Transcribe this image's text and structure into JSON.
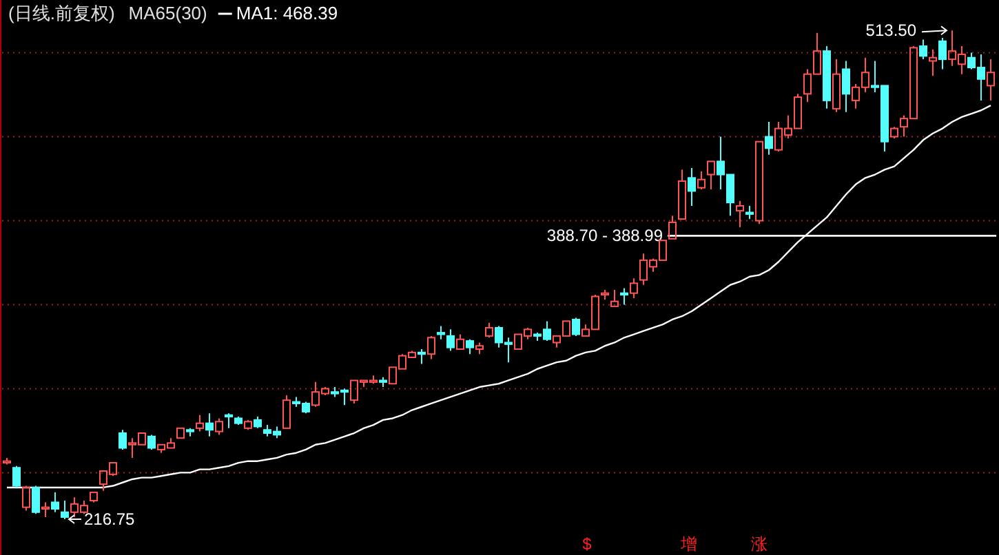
{
  "chart_data": {
    "type": "candlestick",
    "title": "(日线.前复权)",
    "categories": [
      null,
      null,
      null,
      null,
      null,
      null,
      null,
      null,
      null,
      null,
      null,
      null,
      null,
      null,
      null,
      null,
      null,
      null,
      null,
      null,
      null,
      null,
      null,
      null,
      null,
      null,
      null,
      null,
      null,
      null,
      null,
      null,
      null,
      null,
      null,
      null,
      null,
      null,
      null,
      null,
      null,
      null,
      null,
      null,
      null,
      null,
      null,
      null,
      null,
      null,
      null,
      null,
      null,
      null,
      null,
      null,
      null,
      null,
      null,
      null,
      null,
      null,
      null,
      null,
      null,
      null,
      null,
      null,
      null,
      null,
      null,
      null,
      null,
      null,
      null,
      null,
      null,
      null,
      null,
      null,
      null,
      null,
      null,
      null,
      null,
      null,
      null,
      null,
      null,
      null,
      null,
      null,
      null,
      null,
      null,
      null,
      null,
      null,
      null,
      null,
      null,
      null,
      null
    ],
    "ylim": [
      195,
      532
    ],
    "yticks": [
      {
        "value": 500,
        "label": null
      },
      {
        "value": 449,
        "label": null
      },
      {
        "value": 398,
        "label": null
      },
      {
        "value": 347,
        "label": null
      },
      {
        "value": 296,
        "label": null
      },
      {
        "value": 245,
        "label": null
      }
    ],
    "grid": "y",
    "series": [
      {
        "type": "candlestick",
        "ohlc": [
          [
            251,
            254,
            250,
            252
          ],
          [
            248,
            249,
            236,
            237
          ],
          [
            224,
            237,
            222,
            236
          ],
          [
            236,
            237,
            220,
            221
          ],
          [
            223,
            227,
            218,
            224
          ],
          [
            227,
            233,
            221,
            223
          ],
          [
            221,
            228,
            216.75,
            218
          ],
          [
            221,
            230,
            218,
            226
          ],
          [
            221,
            228,
            220,
            225
          ],
          [
            228,
            233,
            227,
            233
          ],
          [
            238,
            246,
            234,
            246
          ],
          [
            244,
            251,
            243,
            251
          ],
          [
            269,
            271,
            259,
            260
          ],
          [
            262,
            266,
            254,
            263
          ],
          [
            262,
            269,
            262,
            269
          ],
          [
            267,
            268,
            259,
            260
          ],
          [
            259,
            262,
            257,
            262
          ],
          [
            260,
            266,
            260,
            263
          ],
          [
            266,
            272,
            266,
            272
          ],
          [
            271,
            272,
            267,
            270
          ],
          [
            272,
            280,
            270,
            275
          ],
          [
            275,
            281,
            267,
            271
          ],
          [
            270,
            278,
            268,
            276
          ],
          [
            280,
            281,
            272,
            279
          ],
          [
            278,
            279,
            274,
            275
          ],
          [
            272,
            277,
            271,
            276
          ],
          [
            277,
            279,
            272,
            273
          ],
          [
            271,
            274,
            267,
            269
          ],
          [
            270,
            273,
            266,
            268
          ],
          [
            272,
            292,
            272,
            289
          ],
          [
            288,
            291,
            285,
            287
          ],
          [
            287,
            288,
            281,
            282
          ],
          [
            286,
            300,
            285,
            294
          ],
          [
            293,
            297,
            292,
            296
          ],
          [
            294,
            297,
            291,
            293
          ],
          [
            295,
            296,
            286,
            294
          ],
          [
            289,
            301,
            287,
            301
          ],
          [
            300,
            301,
            297,
            301
          ],
          [
            300,
            304,
            299,
            301
          ],
          [
            301,
            303,
            297,
            300
          ],
          [
            299,
            309,
            299,
            309
          ],
          [
            308,
            317,
            308,
            316
          ],
          [
            315,
            319,
            315,
            318
          ],
          [
            318,
            320,
            311,
            317
          ],
          [
            317,
            328,
            314,
            327
          ],
          [
            330,
            334,
            326,
            329
          ],
          [
            328,
            332,
            319,
            321
          ],
          [
            320,
            329,
            320,
            326
          ],
          [
            325,
            326,
            317,
            321
          ],
          [
            320,
            324,
            317,
            322
          ],
          [
            328,
            336,
            327,
            333
          ],
          [
            333,
            334,
            321,
            324
          ],
          [
            324,
            327,
            312,
            323
          ],
          [
            320,
            329,
            320,
            329
          ],
          [
            328,
            333,
            326,
            332
          ],
          [
            329,
            330,
            325,
            328
          ],
          [
            332,
            337,
            325,
            326
          ],
          [
            324,
            328,
            321,
            328
          ],
          [
            328,
            337,
            328,
            337
          ],
          [
            338,
            339,
            328,
            329
          ],
          [
            328,
            335,
            328,
            332
          ],
          [
            332,
            353,
            332,
            352
          ],
          [
            353,
            356,
            350,
            354
          ],
          [
            346,
            356,
            346,
            349
          ],
          [
            354,
            357,
            347,
            353
          ],
          [
            354,
            363,
            351,
            360
          ],
          [
            362,
            378,
            359,
            374
          ],
          [
            370,
            375,
            367,
            374
          ],
          [
            374,
            386,
            374,
            386
          ],
          [
            387,
            401,
            387,
            397
          ],
          [
            399,
            429,
            399,
            422
          ],
          [
            424,
            430,
            407,
            416
          ],
          [
            418,
            428,
            417,
            423
          ],
          [
            426,
            434,
            417,
            434
          ],
          [
            434,
            449,
            417,
            426
          ],
          [
            426,
            426,
            401,
            409
          ],
          [
            404,
            410,
            394,
            407
          ],
          [
            403,
            407,
            399,
            402
          ],
          [
            398,
            446,
            396,
            446
          ],
          [
            449,
            458,
            438,
            442
          ],
          [
            441,
            458,
            440,
            454
          ],
          [
            450,
            462,
            448,
            454
          ],
          [
            454,
            475,
            454,
            473
          ],
          [
            475,
            490,
            470,
            487
          ],
          [
            487,
            512,
            487,
            501
          ],
          [
            501,
            504,
            466,
            471
          ],
          [
            466,
            496,
            464,
            487
          ],
          [
            490,
            495,
            464,
            475
          ],
          [
            471,
            481,
            466,
            479
          ],
          [
            479,
            497,
            476,
            488
          ],
          [
            480,
            495,
            476,
            479
          ],
          [
            480,
            480,
            440,
            446
          ],
          [
            449,
            455,
            448,
            454
          ],
          [
            455,
            462,
            449,
            460
          ],
          [
            460,
            504,
            460,
            503
          ],
          [
            504,
            508,
            496,
            498
          ],
          [
            495,
            502,
            486,
            497
          ],
          [
            507,
            509,
            490,
            496
          ],
          [
            496,
            513.5,
            492,
            501
          ],
          [
            493,
            504,
            487,
            499
          ],
          [
            497,
            500,
            490,
            491
          ],
          [
            491,
            499,
            471,
            484
          ],
          [
            480,
            496,
            471,
            488
          ]
        ],
        "colors": [
          "#ff5555",
          "#54fcfc",
          "#ff5555",
          "#54fcfc",
          "#ff5555",
          "#54fcfc",
          "#54fcfc",
          "#ff5555",
          "#ff5555",
          "#ff5555",
          "#ff5555",
          "#ff5555",
          "#54fcfc",
          "#ff5555",
          "#ff5555",
          "#54fcfc",
          "#ff5555",
          "#ff5555",
          "#ff5555",
          "#54fcfc",
          "#ff5555",
          "#54fcfc",
          "#ff5555",
          "#54fcfc",
          "#54fcfc",
          "#ff5555",
          "#54fcfc",
          "#54fcfc",
          "#54fcfc",
          "#ff5555",
          "#54fcfc",
          "#54fcfc",
          "#ff5555",
          "#ff5555",
          "#54fcfc",
          "#54fcfc",
          "#ff5555",
          "#ff5555",
          "#ff5555",
          "#54fcfc",
          "#ff5555",
          "#ff5555",
          "#ff5555",
          "#54fcfc",
          "#ff5555",
          "#54fcfc",
          "#54fcfc",
          "#ff5555",
          "#54fcfc",
          "#ff5555",
          "#ff5555",
          "#54fcfc",
          "#54fcfc",
          "#ff5555",
          "#ff5555",
          "#54fcfc",
          "#54fcfc",
          "#ff5555",
          "#ff5555",
          "#54fcfc",
          "#ff5555",
          "#ff5555",
          "#ff5555",
          "#ff5555",
          "#54fcfc",
          "#ff5555",
          "#ff5555",
          "#ff5555",
          "#ff5555",
          "#ff5555",
          "#ff5555",
          "#54fcfc",
          "#ff5555",
          "#ff5555",
          "#54fcfc",
          "#54fcfc",
          "#ff5555",
          "#54fcfc",
          "#ff5555",
          "#54fcfc",
          "#ff5555",
          "#ff5555",
          "#ff5555",
          "#ff5555",
          "#ff5555",
          "#54fcfc",
          "#ff5555",
          "#54fcfc",
          "#ff5555",
          "#ff5555",
          "#54fcfc",
          "#54fcfc",
          "#ff5555",
          "#ff5555",
          "#ff5555",
          "#54fcfc",
          "#ff5555",
          "#54fcfc",
          "#ff5555",
          "#ff5555",
          "#54fcfc",
          "#54fcfc",
          "#ff5555"
        ]
      },
      {
        "type": "line",
        "name": "MA1: 468.39",
        "color": "#ffffff",
        "values": [
          236,
          236,
          236,
          236,
          236,
          236,
          236,
          236,
          236,
          236,
          236,
          237,
          239,
          241,
          242,
          242,
          243,
          244,
          245,
          245,
          247,
          247,
          248,
          249,
          251,
          252,
          252,
          253,
          254,
          256,
          257,
          259,
          262,
          263,
          265,
          267,
          269,
          272,
          274,
          277,
          278,
          280,
          283,
          285,
          287,
          289,
          291,
          293,
          295,
          297,
          298,
          299,
          301,
          303,
          305,
          308,
          310,
          312,
          313,
          316,
          318,
          319,
          322,
          324,
          327,
          329,
          331,
          333,
          335,
          338,
          340,
          343,
          347,
          351,
          355,
          359,
          361,
          364,
          365,
          368,
          373,
          379,
          385,
          390,
          395,
          400,
          407,
          414,
          420,
          424,
          426,
          429,
          431,
          436,
          441,
          447,
          451,
          454,
          458,
          461,
          463,
          465,
          468
        ]
      }
    ],
    "bands": [
      {
        "axis": "y",
        "from": 388.7,
        "to": 388.99,
        "label": "388.70 - 388.99",
        "color": "#ffffff"
      }
    ],
    "annotations": [
      "513.50",
      "216.75",
      "MA65(30)",
      "$",
      "增",
      "涨"
    ]
  }
}
